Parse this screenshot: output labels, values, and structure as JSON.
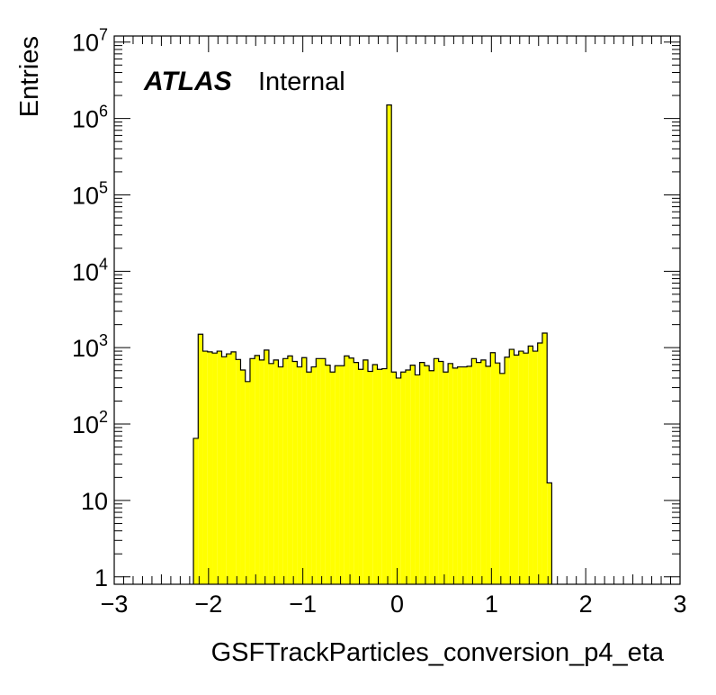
{
  "chart_data": {
    "type": "bar",
    "title": "",
    "xlabel": "GSFTrackParticles_conversion_p4_eta",
    "ylabel": "Entries",
    "xlim": [
      -3,
      3
    ],
    "ylim": [
      0.8,
      12000000
    ],
    "yscale": "log",
    "x_ticks": [
      -3,
      -2,
      -1,
      0,
      1,
      2,
      3
    ],
    "x_tick_labels": [
      "−3",
      "−2",
      "−1",
      "0",
      "1",
      "2",
      "3"
    ],
    "y_ticks": [
      {
        "value": 1,
        "base": "1",
        "exp": ""
      },
      {
        "value": 10,
        "base": "10",
        "exp": ""
      },
      {
        "value": 100,
        "base": "10",
        "exp": "2"
      },
      {
        "value": 1000,
        "base": "10",
        "exp": "3"
      },
      {
        "value": 10000,
        "base": "10",
        "exp": "4"
      },
      {
        "value": 100000,
        "base": "10",
        "exp": "5"
      },
      {
        "value": 1000000,
        "base": "10",
        "exp": "6"
      },
      {
        "value": 10000000,
        "base": "10",
        "exp": "7"
      }
    ],
    "bin_edges_start": -2.16,
    "bin_width": 0.05,
    "values": [
      65,
      1500,
      900,
      880,
      850,
      900,
      760,
      830,
      880,
      700,
      510,
      360,
      720,
      790,
      690,
      930,
      620,
      690,
      560,
      720,
      780,
      660,
      560,
      740,
      480,
      560,
      720,
      720,
      590,
      480,
      580,
      580,
      780,
      730,
      640,
      520,
      690,
      490,
      600,
      520,
      530,
      1500000,
      480,
      400,
      480,
      510,
      590,
      440,
      640,
      580,
      500,
      720,
      660,
      480,
      620,
      540,
      560,
      560,
      570,
      720,
      640,
      690,
      570,
      860,
      630,
      460,
      750,
      950,
      800,
      900,
      850,
      1050,
      900,
      1150,
      1550,
      17
    ],
    "fill_color": "#ffff00",
    "line_color": "#000000",
    "annotation": {
      "bold": "ATLAS",
      "normal": "Internal"
    },
    "grid": false,
    "legend": "none"
  }
}
